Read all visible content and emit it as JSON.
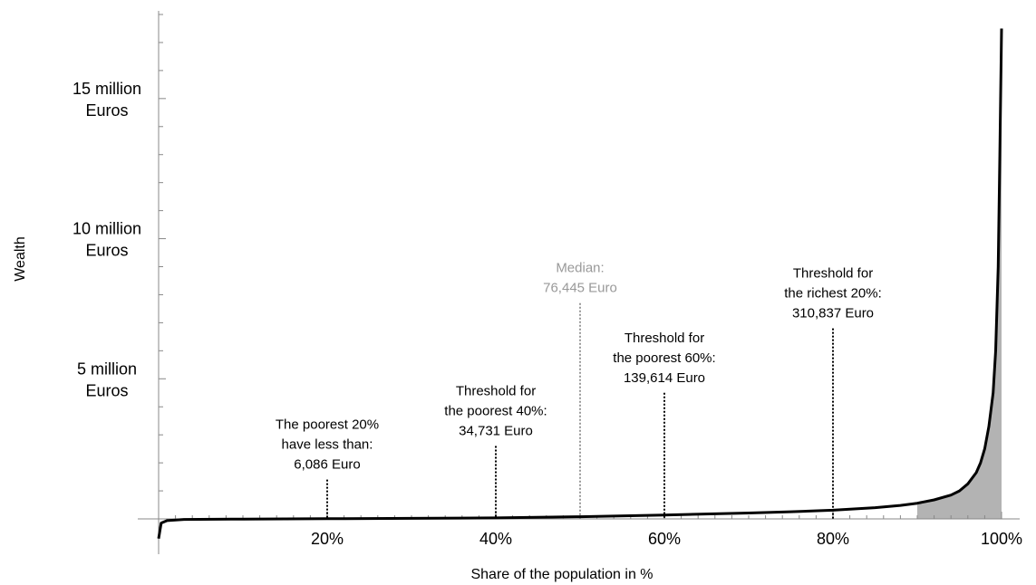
{
  "chart_data": {
    "type": "area",
    "xlabel": "Share of the population in %",
    "ylabel": "Wealth",
    "xlim": [
      0,
      100
    ],
    "ylim": [
      0,
      18000000
    ],
    "y_unit": "Euro",
    "x_ticks": [
      {
        "value": 20,
        "label": "20%"
      },
      {
        "value": 40,
        "label": "40%"
      },
      {
        "value": 60,
        "label": "60%"
      },
      {
        "value": 80,
        "label": "80%"
      },
      {
        "value": 100,
        "label": "100%"
      }
    ],
    "y_ticks": [
      {
        "value": 5000000,
        "lines": [
          "5 million",
          "Euros"
        ]
      },
      {
        "value": 10000000,
        "lines": [
          "10 million",
          "Euros"
        ]
      },
      {
        "value": 15000000,
        "lines": [
          "15 million",
          "Euros"
        ]
      }
    ],
    "curve": {
      "color": "#000000",
      "fill": "#b3b3b3",
      "x": [
        0,
        0.3,
        1,
        3,
        10,
        20,
        30,
        40,
        50,
        60,
        70,
        75,
        80,
        85,
        88,
        90,
        92,
        94,
        95,
        96,
        97,
        97.5,
        98,
        98.5,
        99,
        99.3,
        99.6,
        99.8,
        100
      ],
      "y": [
        -700000,
        -150000,
        -60000,
        -20000,
        -5000,
        6086,
        18000,
        34731,
        76445,
        139614,
        210000,
        255000,
        310837,
        400000,
        480000,
        560000,
        680000,
        850000,
        1000000,
        1250000,
        1650000,
        2000000,
        2500000,
        3300000,
        4500000,
        6000000,
        9000000,
        13000000,
        17500000
      ]
    },
    "annotations": [
      {
        "x": 20,
        "marker_top": 1400000,
        "color": "#000000",
        "lines": [
          "The poorest 20%",
          "have less than:",
          "6,086 Euro"
        ]
      },
      {
        "x": 40,
        "marker_top": 2600000,
        "color": "#000000",
        "lines": [
          "Threshold for",
          "the poorest 40%:",
          "34,731 Euro"
        ]
      },
      {
        "x": 50,
        "marker_top": 7700000,
        "color": "#999999",
        "lines": [
          "Median:",
          "76,445 Euro"
        ]
      },
      {
        "x": 60,
        "marker_top": 4500000,
        "color": "#000000",
        "lines": [
          "Threshold for",
          "the poorest 60%:",
          "139,614 Euro"
        ]
      },
      {
        "x": 80,
        "marker_top": 6800000,
        "color": "#000000",
        "lines": [
          "Threshold for",
          "the richest 20%:",
          "310,837 Euro"
        ]
      }
    ]
  }
}
